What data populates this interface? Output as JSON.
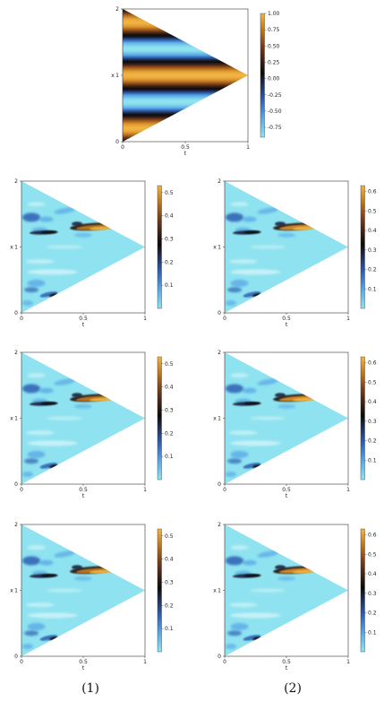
{
  "chart_data": [
    {
      "id": "top",
      "type": "heatmap",
      "xlabel": "t",
      "ylabel": "x",
      "xlim": [
        0,
        1
      ],
      "ylim": [
        0,
        2
      ],
      "xticks": [
        "0",
        "0.5",
        "1"
      ],
      "yticks": [
        "0",
        "1",
        "2"
      ],
      "colorbar": {
        "min": -0.9,
        "max": 1.0,
        "ticks": [
          "1.00",
          "0.75",
          "0.50",
          "0.25",
          "0.00",
          "-0.25",
          "-0.50",
          "-0.75"
        ],
        "tick_values": [
          1.0,
          0.75,
          0.5,
          0.25,
          0.0,
          -0.25,
          -0.5,
          -0.75
        ]
      },
      "field": "cos(2*pi*x*1.2) with horizontal bands converging at apex"
    },
    {
      "id": "r1c1",
      "type": "heatmap",
      "xlabel": "t",
      "ylabel": "x",
      "xlim": [
        0,
        1
      ],
      "ylim": [
        0,
        2
      ],
      "xticks": [
        "0",
        "0.5",
        "1"
      ],
      "yticks": [
        "0",
        "1",
        "2"
      ],
      "colorbar": {
        "min": 0.0,
        "max": 0.53,
        "ticks": [
          "0.5",
          "0.4",
          "0.3",
          "0.2",
          "0.1"
        ],
        "tick_values": [
          0.5,
          0.4,
          0.3,
          0.2,
          0.1
        ]
      }
    },
    {
      "id": "r1c2",
      "type": "heatmap",
      "xlabel": "t",
      "ylabel": "x",
      "xlim": [
        0,
        1
      ],
      "ylim": [
        0,
        2
      ],
      "xticks": [
        "0",
        "0.5",
        "1"
      ],
      "yticks": [
        "0",
        "1",
        "2"
      ],
      "colorbar": {
        "min": 0.0,
        "max": 0.63,
        "ticks": [
          "0.6",
          "0.5",
          "0.4",
          "0.3",
          "0.2",
          "0.1"
        ],
        "tick_values": [
          0.6,
          0.5,
          0.4,
          0.3,
          0.2,
          0.1
        ]
      }
    },
    {
      "id": "r2c1",
      "type": "heatmap",
      "xlabel": "t",
      "ylabel": "x",
      "xlim": [
        0,
        1
      ],
      "ylim": [
        0,
        2
      ],
      "xticks": [
        "0",
        "0.5",
        "1"
      ],
      "yticks": [
        "0",
        "1",
        "2"
      ],
      "colorbar": {
        "min": 0.0,
        "max": 0.53,
        "ticks": [
          "0.5",
          "0.4",
          "0.3",
          "0.2",
          "0.1"
        ],
        "tick_values": [
          0.5,
          0.4,
          0.3,
          0.2,
          0.1
        ]
      }
    },
    {
      "id": "r2c2",
      "type": "heatmap",
      "xlabel": "t",
      "ylabel": "x",
      "xlim": [
        0,
        1
      ],
      "ylim": [
        0,
        2
      ],
      "xticks": [
        "0",
        "0.5",
        "1"
      ],
      "yticks": [
        "0",
        "1",
        "2"
      ],
      "colorbar": {
        "min": 0.0,
        "max": 0.63,
        "ticks": [
          "0.6",
          "0.5",
          "0.4",
          "0.3",
          "0.2",
          "0.1"
        ],
        "tick_values": [
          0.6,
          0.5,
          0.4,
          0.3,
          0.2,
          0.1
        ]
      }
    },
    {
      "id": "r3c1",
      "type": "heatmap",
      "xlabel": "t",
      "ylabel": "x",
      "xlim": [
        0,
        1
      ],
      "ylim": [
        0,
        2
      ],
      "xticks": [
        "0",
        "0.5",
        "1"
      ],
      "yticks": [
        "0",
        "1",
        "2"
      ],
      "colorbar": {
        "min": 0.0,
        "max": 0.53,
        "ticks": [
          "0.5",
          "0.4",
          "0.3",
          "0.2",
          "0.1"
        ],
        "tick_values": [
          0.5,
          0.4,
          0.3,
          0.2,
          0.1
        ]
      }
    },
    {
      "id": "r3c2",
      "type": "heatmap",
      "xlabel": "t",
      "ylabel": "x",
      "xlim": [
        0,
        1
      ],
      "ylim": [
        0,
        2
      ],
      "xticks": [
        "0",
        "0.5",
        "1"
      ],
      "yticks": [
        "0",
        "1",
        "2"
      ],
      "colorbar": {
        "min": 0.0,
        "max": 0.63,
        "ticks": [
          "0.6",
          "0.5",
          "0.4",
          "0.3",
          "0.2",
          "0.1"
        ],
        "tick_values": [
          0.6,
          0.5,
          0.4,
          0.3,
          0.2,
          0.1
        ]
      }
    }
  ],
  "captions": {
    "left": "(1)",
    "right": "(2)"
  },
  "colors": {
    "colormap": [
      "#8fe3f0",
      "#5aa9e6",
      "#2f5fb3",
      "#1d2540",
      "#0a0a0a",
      "#3a2118",
      "#7a3f1a",
      "#c0771f",
      "#f1b441"
    ],
    "background": "#ffffff",
    "axis": "#333333"
  }
}
